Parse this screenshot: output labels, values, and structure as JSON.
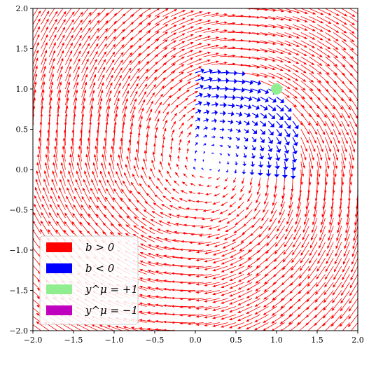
{
  "chart_data": {
    "type": "quiver",
    "title": "",
    "xlabel": "",
    "ylabel": "",
    "xlim": [
      -2.0,
      2.0
    ],
    "ylim": [
      -2.0,
      2.0
    ],
    "grid": false,
    "x_ticks": [
      "−2.0",
      "−1.5",
      "−1.0",
      "−0.5",
      "0.0",
      "0.5",
      "1.0",
      "1.5",
      "2.0"
    ],
    "y_ticks": [
      "−2.0",
      "−1.5",
      "−1.0",
      "−0.5",
      "0.0",
      "0.5",
      "1.0",
      "1.5",
      "2.0"
    ],
    "field": {
      "grid_range": [
        -2.0,
        2.0
      ],
      "grid_step": 0.1,
      "rotation_center": [
        0.2,
        0.1
      ],
      "negative_region": {
        "x_range": [
          0.0,
          1.3
        ],
        "y_range": [
          0.0,
          1.3
        ]
      },
      "description": "clockwise circulating field; arrows red where b > 0, blue where b < 0"
    },
    "points": [
      {
        "x": 1.0,
        "y": 1.0,
        "class": "y=+1",
        "color": "#90ee90"
      }
    ],
    "legend": {
      "position": "lower left",
      "entries": [
        {
          "label": "b > 0",
          "color": "#ff0000"
        },
        {
          "label": "b < 0",
          "color": "#0000ff"
        },
        {
          "label": "y^μ = +1",
          "color": "#90ee90"
        },
        {
          "label": "y^μ = −1",
          "color": "#bf00bf"
        }
      ]
    }
  }
}
